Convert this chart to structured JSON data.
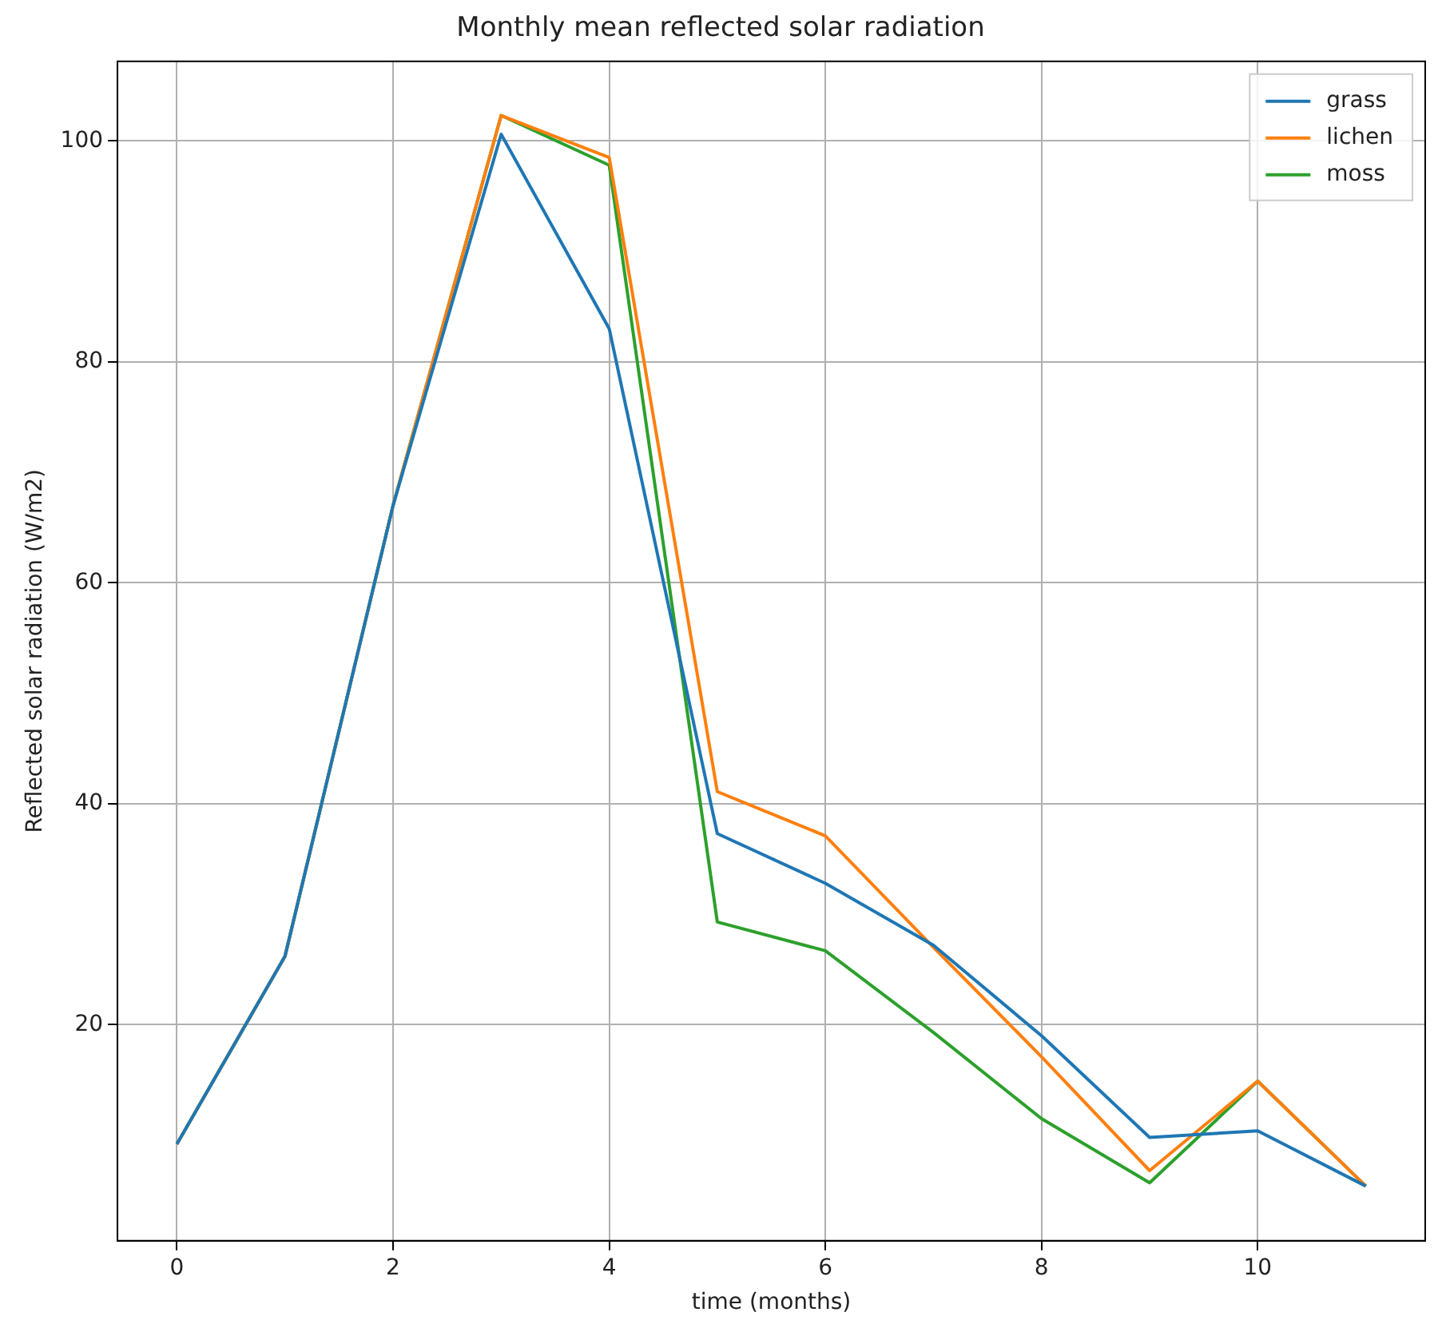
{
  "chart_data": {
    "type": "line",
    "title": "Monthly mean reflected solar radiation",
    "xlabel": "time (months)",
    "ylabel": "Reflected solar radiation (W/m2)",
    "x": [
      0,
      1,
      2,
      3,
      4,
      5,
      6,
      7,
      8,
      9,
      10,
      11
    ],
    "series": [
      {
        "name": "grass",
        "color": "#1f77b4",
        "values": [
          9.2,
          26.2,
          67,
          100.6,
          83,
          37.3,
          32.8,
          27.2,
          19,
          9.8,
          10.4,
          5.4
        ]
      },
      {
        "name": "lichen",
        "color": "#ff7f0e",
        "values": [
          9.2,
          26.2,
          67,
          102.3,
          98.5,
          41.1,
          37.1,
          27,
          17.1,
          6.8,
          14.9,
          5.4
        ]
      },
      {
        "name": "moss",
        "color": "#2ca02c",
        "values": [
          9.2,
          26.2,
          67,
          102.3,
          97.8,
          29.3,
          26.7,
          19.3,
          11.5,
          5.7,
          14.9,
          5.4
        ]
      }
    ],
    "xlim": [
      -0.55,
      11.55
    ],
    "ylim": [
      0.45,
      107.2
    ],
    "xticks": [
      0,
      2,
      4,
      6,
      8,
      10
    ],
    "yticks": [
      20,
      40,
      60,
      80,
      100
    ],
    "grid": true,
    "legend": "top right",
    "marker": "none",
    "line_style": "solid"
  }
}
